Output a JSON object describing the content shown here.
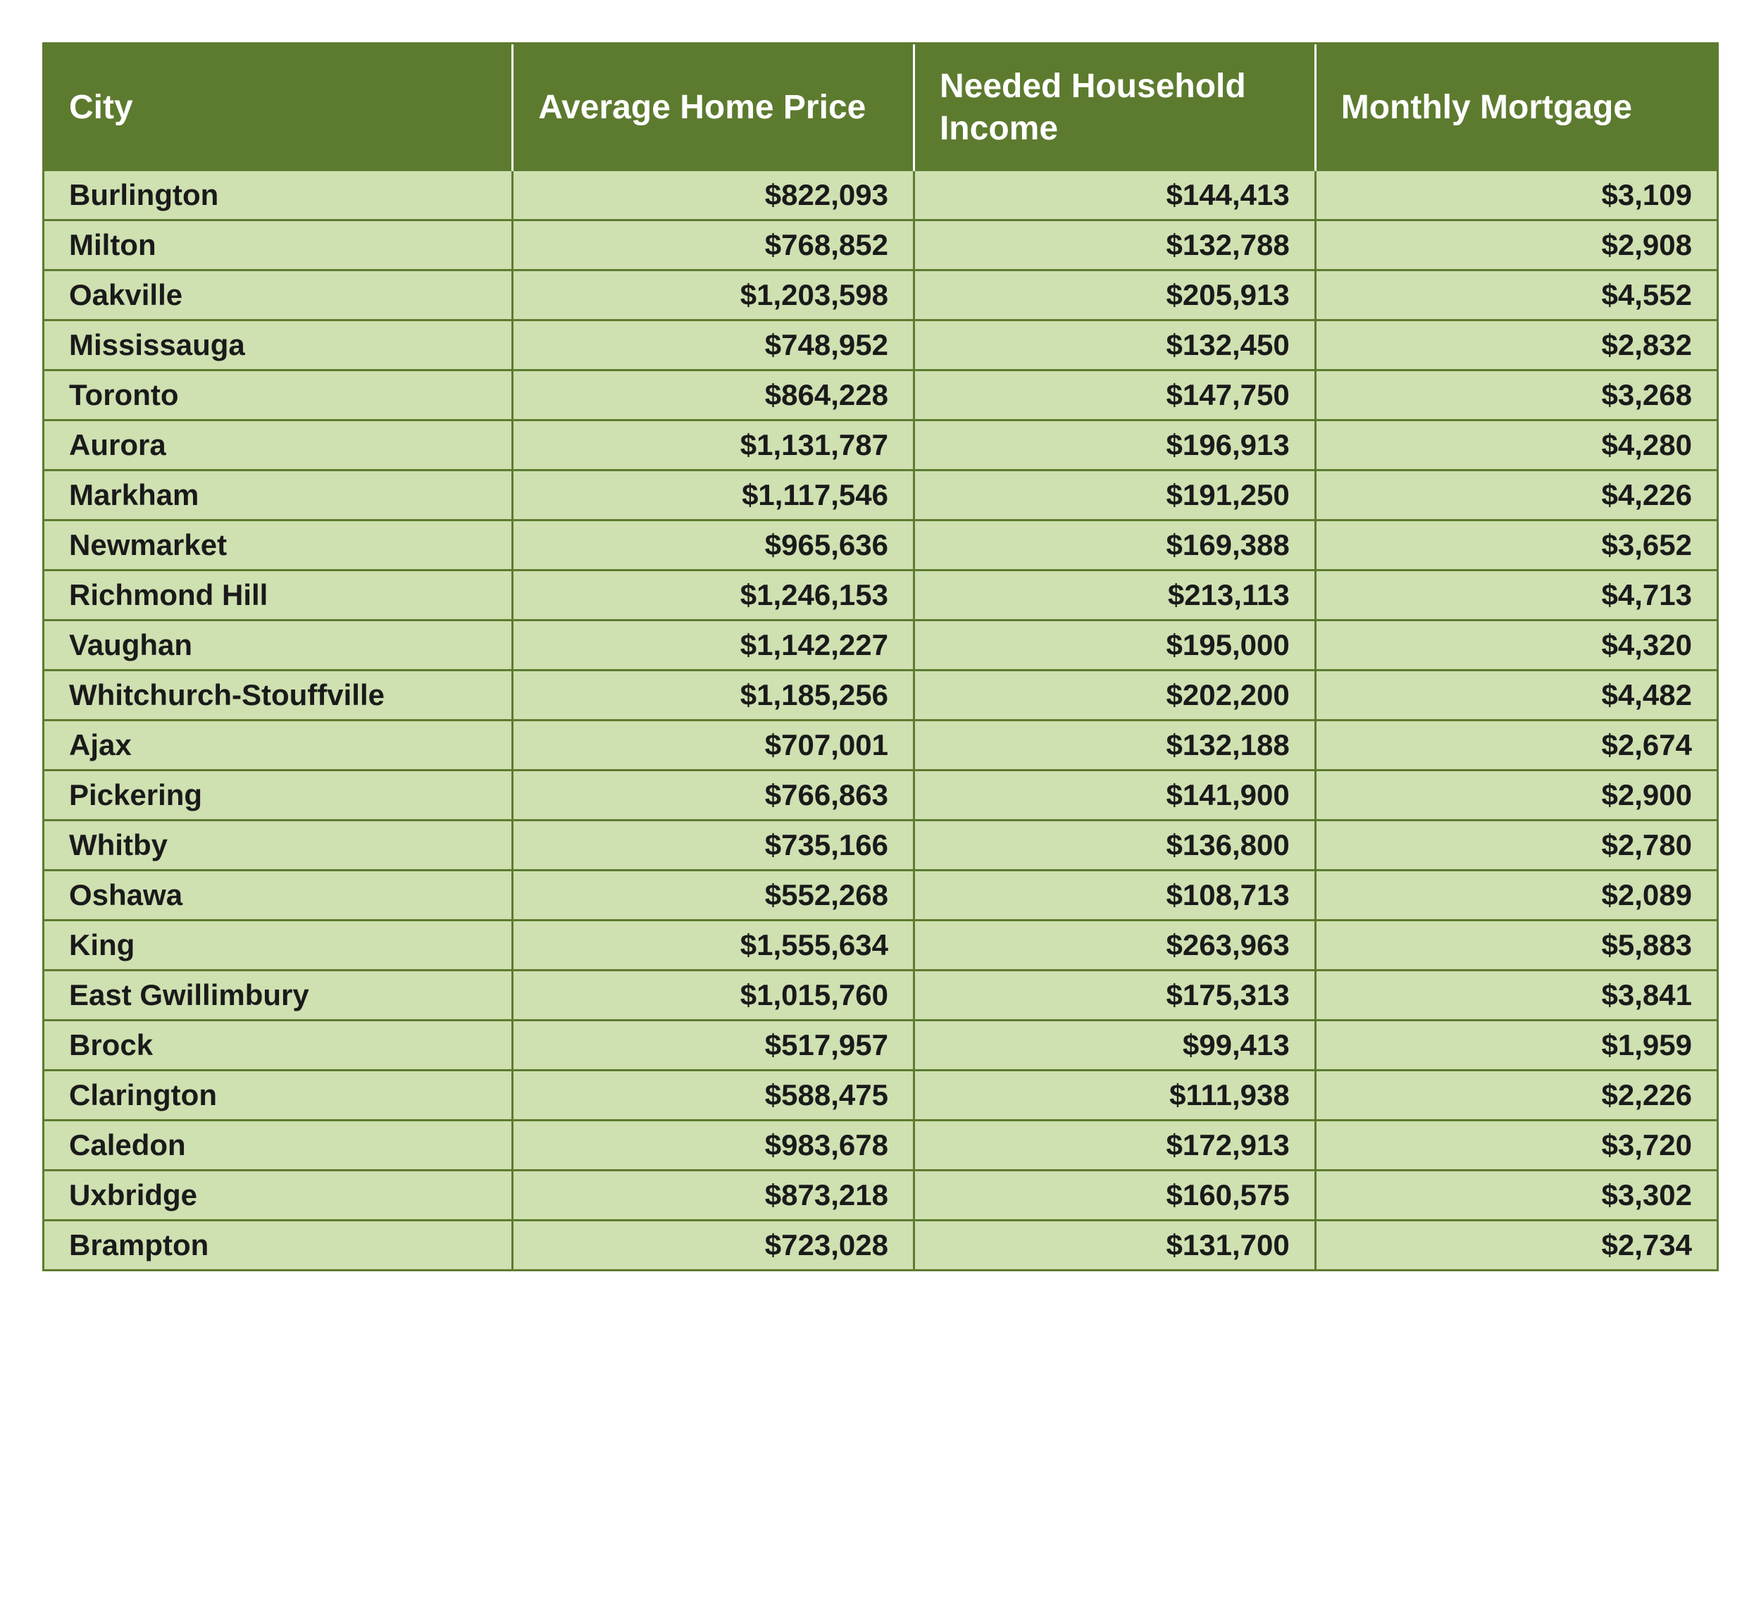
{
  "table": {
    "type": "table",
    "header_bg_color": "#5d7b2f",
    "header_text_color": "#ffffff",
    "row_bg_color": "#cfe0b1",
    "border_color": "#5d7b2f",
    "header_fontsize": 48,
    "body_fontsize": 42,
    "columns": [
      {
        "label": "City",
        "align": "left",
        "width_pct": 28
      },
      {
        "label": "Average Home Price",
        "align": "right",
        "width_pct": 24
      },
      {
        "label": "Needed Household Income",
        "align": "right",
        "width_pct": 24
      },
      {
        "label": "Monthly Mortgage",
        "align": "right",
        "width_pct": 24
      }
    ],
    "rows": [
      {
        "city": "Burlington",
        "price": "$822,093",
        "income": "$144,413",
        "mortgage": "$3,109"
      },
      {
        "city": "Milton",
        "price": "$768,852",
        "income": "$132,788",
        "mortgage": "$2,908"
      },
      {
        "city": "Oakville",
        "price": "$1,203,598",
        "income": "$205,913",
        "mortgage": "$4,552"
      },
      {
        "city": "Mississauga",
        "price": "$748,952",
        "income": "$132,450",
        "mortgage": "$2,832"
      },
      {
        "city": "Toronto",
        "price": "$864,228",
        "income": "$147,750",
        "mortgage": "$3,268"
      },
      {
        "city": "Aurora",
        "price": "$1,131,787",
        "income": "$196,913",
        "mortgage": "$4,280"
      },
      {
        "city": "Markham",
        "price": "$1,117,546",
        "income": "$191,250",
        "mortgage": "$4,226"
      },
      {
        "city": "Newmarket",
        "price": "$965,636",
        "income": "$169,388",
        "mortgage": "$3,652"
      },
      {
        "city": "Richmond Hill",
        "price": "$1,246,153",
        "income": "$213,113",
        "mortgage": "$4,713"
      },
      {
        "city": "Vaughan",
        "price": "$1,142,227",
        "income": "$195,000",
        "mortgage": "$4,320"
      },
      {
        "city": "Whitchurch-Stouffville",
        "price": "$1,185,256",
        "income": "$202,200",
        "mortgage": "$4,482"
      },
      {
        "city": "Ajax",
        "price": "$707,001",
        "income": "$132,188",
        "mortgage": "$2,674"
      },
      {
        "city": "Pickering",
        "price": "$766,863",
        "income": "$141,900",
        "mortgage": "$2,900"
      },
      {
        "city": "Whitby",
        "price": "$735,166",
        "income": "$136,800",
        "mortgage": "$2,780"
      },
      {
        "city": "Oshawa",
        "price": "$552,268",
        "income": "$108,713",
        "mortgage": "$2,089"
      },
      {
        "city": "King",
        "price": "$1,555,634",
        "income": "$263,963",
        "mortgage": "$5,883"
      },
      {
        "city": "East Gwillimbury",
        "price": "$1,015,760",
        "income": "$175,313",
        "mortgage": "$3,841"
      },
      {
        "city": "Brock",
        "price": "$517,957",
        "income": "$99,413",
        "mortgage": "$1,959"
      },
      {
        "city": "Clarington",
        "price": "$588,475",
        "income": "$111,938",
        "mortgage": "$2,226"
      },
      {
        "city": "Caledon",
        "price": "$983,678",
        "income": "$172,913",
        "mortgage": "$3,720"
      },
      {
        "city": "Uxbridge",
        "price": "$873,218",
        "income": "$160,575",
        "mortgage": "$3,302"
      },
      {
        "city": "Brampton",
        "price": "$723,028",
        "income": "$131,700",
        "mortgage": "$2,734"
      }
    ]
  }
}
